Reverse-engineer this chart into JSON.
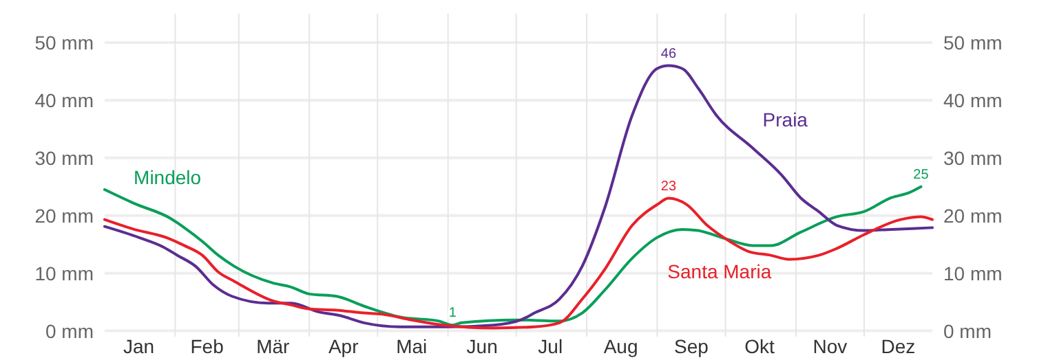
{
  "chart_data": {
    "type": "line",
    "xlim": [
      "--01-01",
      "--12-31"
    ],
    "xticks": [
      {
        "value": "--01-16",
        "label": "Jan"
      },
      {
        "value": "--02-01",
        "label": null
      },
      {
        "value": "--02-15",
        "label": "Feb"
      },
      {
        "value": "--03-01",
        "label": null
      },
      {
        "value": "--03-16",
        "label": "Mär"
      },
      {
        "value": "--04-01",
        "label": null
      },
      {
        "value": "--04-16",
        "label": "Apr"
      },
      {
        "value": "--05-01",
        "label": null
      },
      {
        "value": "--05-16",
        "label": "Mai"
      },
      {
        "value": "--06-01",
        "label": null
      },
      {
        "value": "--06-16",
        "label": "Jun"
      },
      {
        "value": "--07-01",
        "label": null
      },
      {
        "value": "--07-16",
        "label": "Jul"
      },
      {
        "value": "--08-01",
        "label": null
      },
      {
        "value": "--08-16",
        "label": "Aug"
      },
      {
        "value": "--09-01",
        "label": null
      },
      {
        "value": "--09-16",
        "label": "Sep"
      },
      {
        "value": "--10-01",
        "label": null
      },
      {
        "value": "--10-16",
        "label": "Okt"
      },
      {
        "value": "--11-01",
        "label": null
      },
      {
        "value": "--11-16",
        "label": "Nov"
      },
      {
        "value": "--12-01",
        "label": null
      },
      {
        "value": "--12-16",
        "label": "Dez"
      }
    ],
    "ylim": [
      -1,
      55
    ],
    "yticks": [
      {
        "value": 0,
        "label": "0 mm"
      },
      {
        "value": 10,
        "label": "10 mm"
      },
      {
        "value": 20,
        "label": "20 mm"
      },
      {
        "value": 30,
        "label": "30 mm"
      },
      {
        "value": 40,
        "label": "40 mm"
      },
      {
        "value": 50,
        "label": "50 mm"
      }
    ],
    "y2lim": [
      -1,
      55
    ],
    "y2ticks": [
      {
        "value": 0,
        "label": "0 mm"
      },
      {
        "value": 10,
        "label": "10 mm"
      },
      {
        "value": 20,
        "label": "20 mm"
      },
      {
        "value": 30,
        "label": "30 mm"
      },
      {
        "value": 40,
        "label": "40 mm"
      },
      {
        "value": 50,
        "label": "50 mm"
      }
    ],
    "grid": true,
    "legend": false,
    "marker": "none",
    "line_style": "solid",
    "series": [
      {
        "name": "Mindelo",
        "color": "#0a9e5a",
        "x": [
          "--01-01",
          "--01-14",
          "--01-30",
          "--02-05",
          "--02-13",
          "--02-20",
          "--02-27",
          "--03-16",
          "--03-24",
          "--04-01",
          "--04-13",
          "--04-25",
          "--05-11",
          "--05-28",
          "--06-03",
          "--06-07",
          "--07-01",
          "--07-20",
          "--07-30",
          "--08-09",
          "--08-21",
          "--09-01",
          "--09-12",
          "--09-19",
          "--10-01",
          "--10-13",
          "--10-21",
          "--11-03",
          "--11-19",
          "--12-01",
          "--12-13",
          "--12-21",
          "--12-26"
        ],
        "values": [
          24.5,
          22.1,
          19.5,
          17.9,
          15.5,
          13.1,
          11.2,
          8.3,
          7.6,
          6.4,
          6.0,
          4.3,
          2.4,
          1.7,
          1,
          1.4,
          1.9,
          1.7,
          3.1,
          7.1,
          12.6,
          16.2,
          17.6,
          17.4,
          16.0,
          14.8,
          14.8,
          17.1,
          19.8,
          20.7,
          23.1,
          24.0,
          25
        ]
      },
      {
        "name": "Praia",
        "color": "#5b2d90",
        "x": [
          "--01-01",
          "--01-16",
          "--01-27",
          "--02-02",
          "--02-10",
          "--02-18",
          "--02-26",
          "--03-14",
          "--03-24",
          "--04-05",
          "--04-15",
          "--04-25",
          "--05-11",
          "--06-01",
          "--06-21",
          "--07-03",
          "--07-09",
          "--07-20",
          "--07-30",
          "--08-09",
          "--08-21",
          "--09-01",
          "--09-06",
          "--09-12",
          "--09-19",
          "--09-27",
          "--10-13",
          "--10-26",
          "--11-03",
          "--11-11",
          "--11-19",
          "--12-01",
          "--12-13",
          "--12-31"
        ],
        "values": [
          18.1,
          16.2,
          14.5,
          13.1,
          11.2,
          7.9,
          6.0,
          4.8,
          4.8,
          3.3,
          2.6,
          1.4,
          0.7,
          0.7,
          1.0,
          1.9,
          3.1,
          5.5,
          11.2,
          21.4,
          37.4,
          45.5,
          46,
          45.5,
          42.1,
          37.4,
          31.7,
          26.9,
          23.1,
          20.7,
          18.3,
          17.4,
          17.6,
          17.9
        ]
      },
      {
        "name": "Santa Maria",
        "color": "#e8202a",
        "x": [
          "--01-01",
          "--01-14",
          "--01-28",
          "--02-05",
          "--02-13",
          "--02-20",
          "--02-27",
          "--03-16",
          "--03-24",
          "--04-01",
          "--04-13",
          "--04-25",
          "--05-03",
          "--05-16",
          "--05-30",
          "--06-21",
          "--07-09",
          "--07-20",
          "--07-30",
          "--08-09",
          "--08-21",
          "--09-01",
          "--09-06",
          "--09-14",
          "--09-23",
          "--10-03",
          "--10-11",
          "--10-21",
          "--10-29",
          "--11-11",
          "--11-19",
          "--12-01",
          "--12-17",
          "--12-26",
          "--12-31"
        ],
        "values": [
          19.3,
          17.6,
          16.2,
          14.8,
          13.1,
          10.2,
          8.6,
          5.2,
          4.5,
          3.8,
          3.6,
          3.1,
          2.9,
          1.9,
          1.0,
          0.5,
          0.7,
          1.4,
          5.5,
          10.7,
          18.3,
          21.9,
          23,
          21.9,
          18.3,
          15.5,
          13.8,
          13.1,
          12.4,
          13.1,
          14.3,
          16.7,
          19.3,
          19.8,
          19.3
        ]
      }
    ],
    "annotations": [
      {
        "text": "1",
        "x": "--06-03",
        "y": 1
      },
      {
        "text": "46",
        "x": "--09-06",
        "y": 46
      },
      {
        "text": "23",
        "x": "--09-06",
        "y": 23
      },
      {
        "text": "25",
        "x": "--12-26",
        "y": 25
      }
    ]
  }
}
